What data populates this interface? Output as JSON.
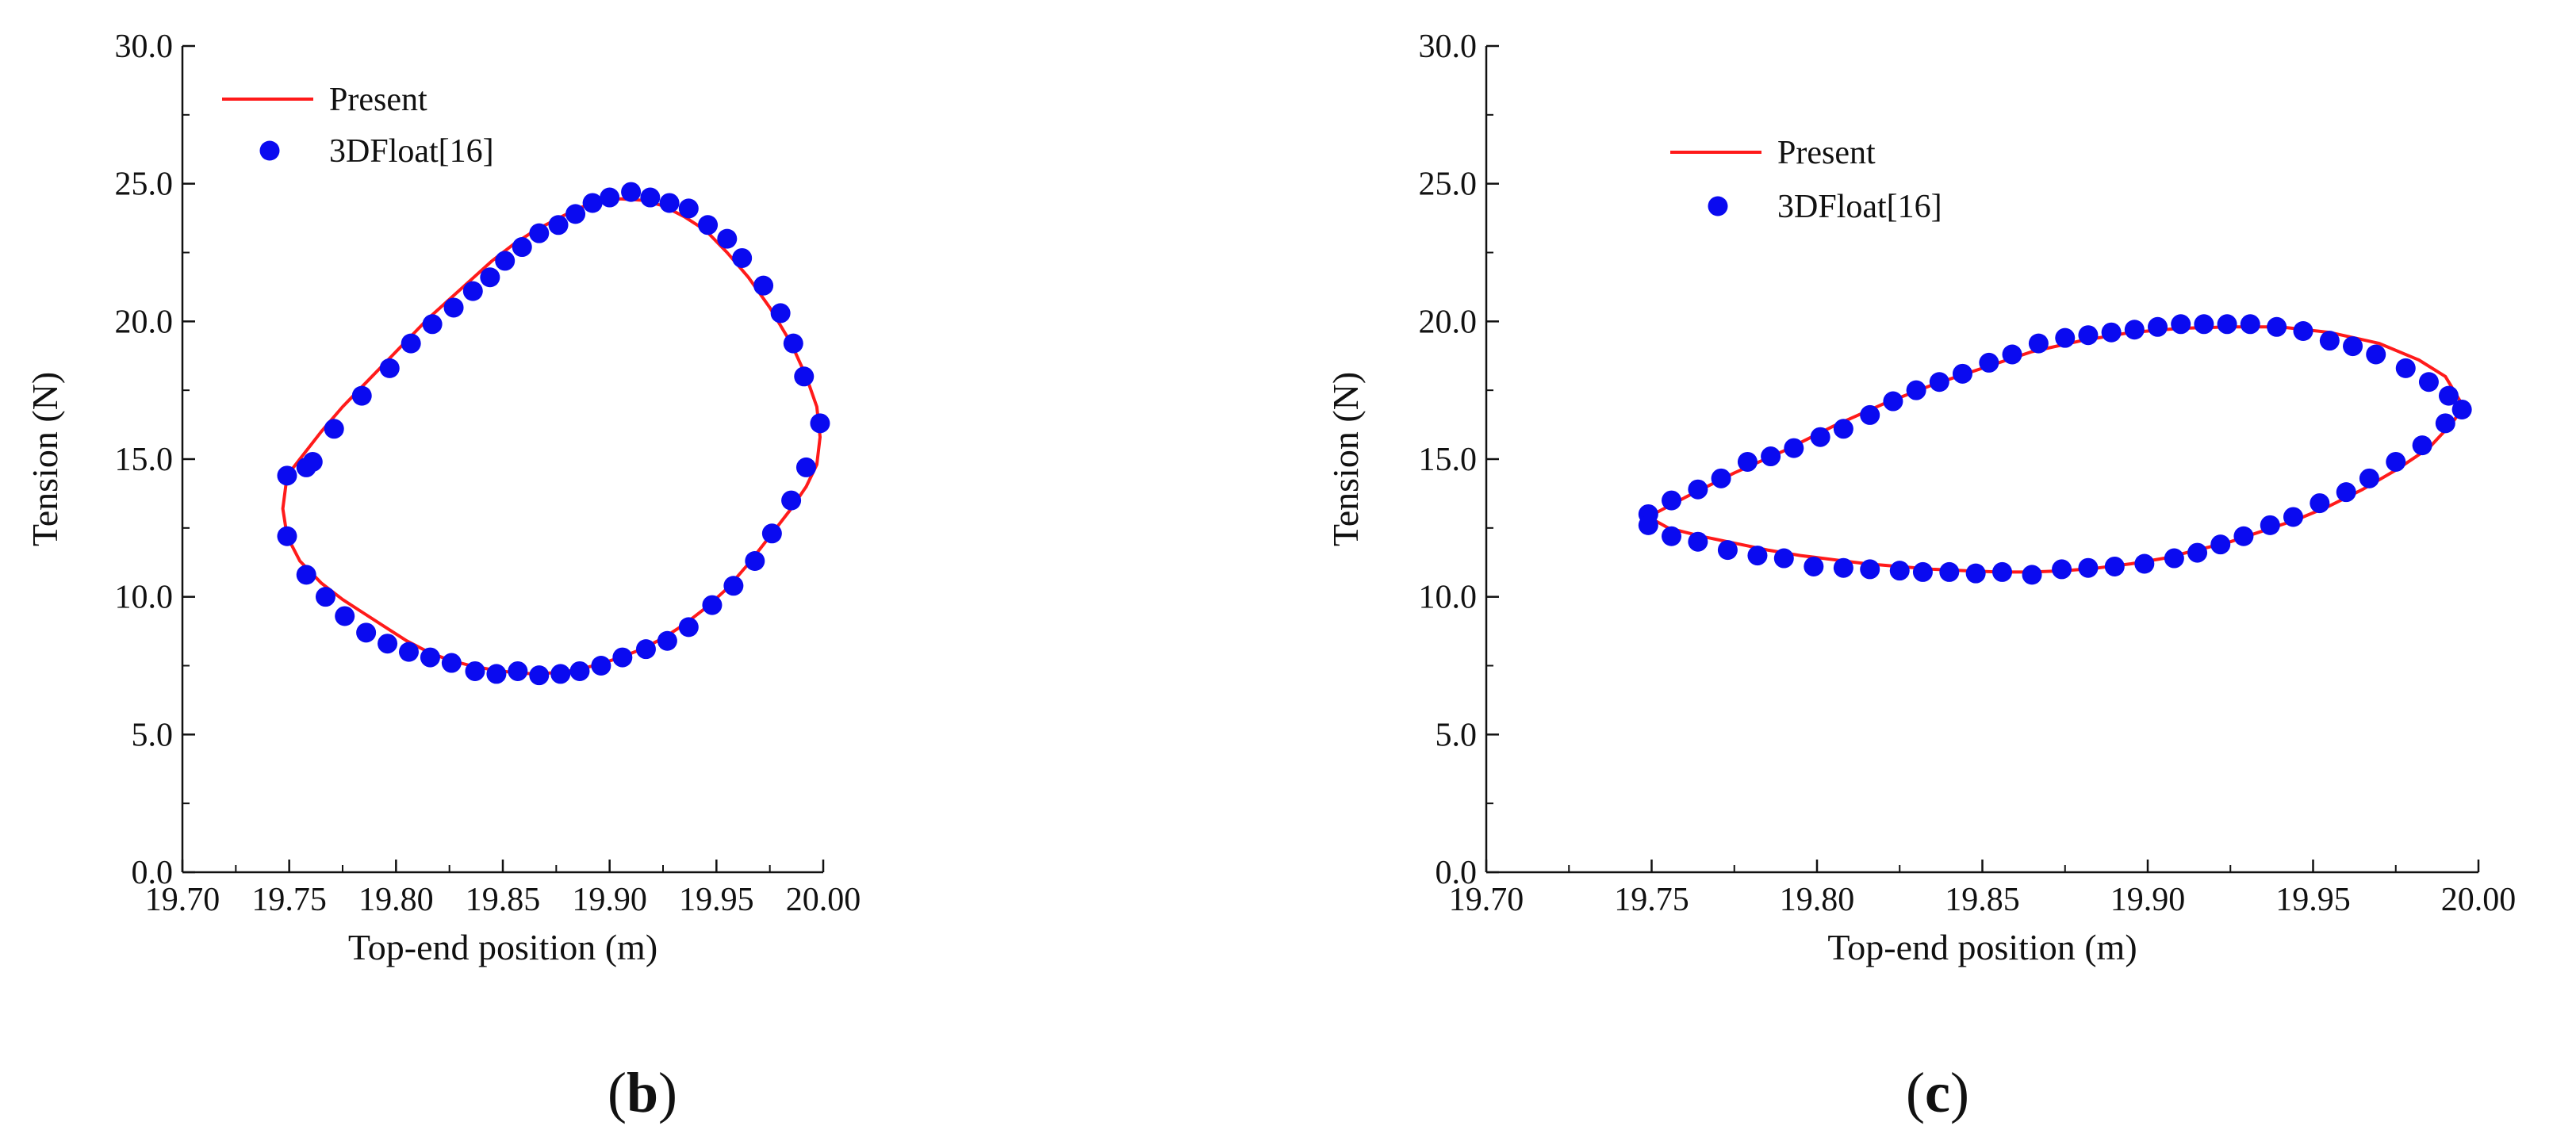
{
  "colors": {
    "line": "#ff1a1a",
    "points": "#0a0af0",
    "axis": "#111111"
  },
  "chart_data": [
    {
      "type": "scatter",
      "panel_label": {
        "open": "(",
        "letter": "b",
        "close": ")"
      },
      "xlabel": "Top-end position (m)",
      "ylabel": "Tension (N)",
      "xlim": [
        19.7,
        20.0
      ],
      "ylim": [
        0.0,
        30.0
      ],
      "xticks": [
        "19.70",
        "19.75",
        "19.80",
        "19.85",
        "19.90",
        "19.95",
        "20.00"
      ],
      "yticks": [
        "0.0",
        "5.0",
        "10.0",
        "15.0",
        "20.0",
        "25.0",
        "30.0"
      ],
      "legend": {
        "position": "top-left",
        "entries": [
          "Present",
          "3DFloat[16]"
        ]
      },
      "series": [
        {
          "name": "Present",
          "kind": "line",
          "x": [
            19.749,
            19.755,
            19.765,
            19.775,
            19.785,
            19.795,
            19.805,
            19.815,
            19.825,
            19.835,
            19.845,
            19.855,
            19.865,
            19.875,
            19.885,
            19.895,
            19.905,
            19.915,
            19.925,
            19.935,
            19.945,
            19.955,
            19.965,
            19.975,
            19.985,
            19.992,
            19.997,
            19.9985,
            19.997,
            19.992,
            19.985,
            19.975,
            19.965,
            19.955,
            19.945,
            19.935,
            19.925,
            19.915,
            19.905,
            19.895,
            19.885,
            19.875,
            19.865,
            19.855,
            19.845,
            19.835,
            19.825,
            19.815,
            19.805,
            19.795,
            19.785,
            19.775,
            19.765,
            19.755,
            19.749,
            19.747,
            19.749
          ],
          "y": [
            14.4,
            15.0,
            16.0,
            16.9,
            17.7,
            18.5,
            19.3,
            20.1,
            20.8,
            21.5,
            22.2,
            22.8,
            23.3,
            23.7,
            24.1,
            24.35,
            24.45,
            24.4,
            24.2,
            23.8,
            23.3,
            22.5,
            21.6,
            20.5,
            19.2,
            18.0,
            16.9,
            15.8,
            14.8,
            14.0,
            13.2,
            12.2,
            11.2,
            10.3,
            9.6,
            9.0,
            8.5,
            8.1,
            7.8,
            7.55,
            7.35,
            7.25,
            7.2,
            7.25,
            7.35,
            7.5,
            7.7,
            8.0,
            8.4,
            8.9,
            9.4,
            9.9,
            10.5,
            11.3,
            12.2,
            13.2,
            14.4
          ]
        },
        {
          "name": "3DFloat[16]",
          "kind": "points",
          "x": [
            19.749,
            19.758,
            19.761,
            19.771,
            19.784,
            19.797,
            19.807,
            19.817,
            19.827,
            19.836,
            19.844,
            19.851,
            19.859,
            19.867,
            19.876,
            19.884,
            19.892,
            19.9,
            19.91,
            19.919,
            19.928,
            19.937,
            19.946,
            19.955,
            19.962,
            19.972,
            19.98,
            19.986,
            19.991,
            19.9985,
            19.992,
            19.985,
            19.976,
            19.968,
            19.958,
            19.948,
            19.937,
            19.927,
            19.917,
            19.906,
            19.896,
            19.886,
            19.877,
            19.867,
            19.857,
            19.847,
            19.837,
            19.826,
            19.816,
            19.806,
            19.796,
            19.786,
            19.776,
            19.767,
            19.758,
            19.749
          ],
          "y": [
            14.4,
            14.7,
            14.9,
            16.1,
            17.3,
            18.3,
            19.2,
            19.9,
            20.5,
            21.1,
            21.6,
            22.2,
            22.7,
            23.2,
            23.5,
            23.9,
            24.3,
            24.5,
            24.7,
            24.5,
            24.3,
            24.1,
            23.5,
            23.0,
            22.3,
            21.3,
            20.3,
            19.2,
            18.0,
            16.3,
            14.7,
            13.5,
            12.3,
            11.3,
            10.4,
            9.7,
            8.9,
            8.4,
            8.1,
            7.8,
            7.5,
            7.3,
            7.2,
            7.15,
            7.3,
            7.2,
            7.3,
            7.6,
            7.8,
            8.0,
            8.3,
            8.7,
            9.3,
            10.0,
            10.8,
            12.2
          ]
        }
      ]
    },
    {
      "type": "scatter",
      "panel_label": {
        "open": "(",
        "letter": "c",
        "close": ")"
      },
      "xlabel": "Top-end position (m)",
      "ylabel": "Tension (N)",
      "xlim": [
        19.7,
        20.0
      ],
      "ylim": [
        0.0,
        30.0
      ],
      "xticks": [
        "19.70",
        "19.75",
        "19.80",
        "19.85",
        "19.90",
        "19.95",
        "20.00"
      ],
      "yticks": [
        "0.0",
        "5.0",
        "10.0",
        "15.0",
        "20.0",
        "25.0",
        "30.0"
      ],
      "legend": {
        "position": "top-left",
        "entries": [
          "Present",
          "3DFloat[16]"
        ]
      },
      "series": [
        {
          "name": "Present",
          "kind": "line",
          "x": [
            19.749,
            19.76,
            19.775,
            19.79,
            19.805,
            19.82,
            19.835,
            19.85,
            19.865,
            19.88,
            19.895,
            19.91,
            19.925,
            19.94,
            19.955,
            19.97,
            19.982,
            19.99,
            19.9955,
            19.992,
            19.985,
            19.975,
            19.965,
            19.955,
            19.945,
            19.935,
            19.925,
            19.915,
            19.905,
            19.895,
            19.885,
            19.875,
            19.865,
            19.855,
            19.845,
            19.835,
            19.825,
            19.815,
            19.805,
            19.795,
            19.785,
            19.775,
            19.765,
            19.755,
            19.749
          ],
          "y": [
            12.9,
            13.6,
            14.5,
            15.3,
            16.2,
            17.0,
            17.7,
            18.3,
            18.9,
            19.3,
            19.6,
            19.75,
            19.8,
            19.8,
            19.6,
            19.2,
            18.6,
            18.0,
            16.9,
            16.3,
            15.4,
            14.6,
            13.9,
            13.3,
            12.8,
            12.4,
            12.0,
            11.7,
            11.4,
            11.2,
            11.05,
            10.95,
            10.9,
            10.9,
            10.95,
            11.0,
            11.1,
            11.2,
            11.35,
            11.5,
            11.7,
            11.95,
            12.2,
            12.5,
            12.9
          ]
        },
        {
          "name": "3DFloat[16]",
          "kind": "points",
          "x": [
            19.749,
            19.756,
            19.764,
            19.771,
            19.779,
            19.786,
            19.793,
            19.801,
            19.808,
            19.816,
            19.823,
            19.83,
            19.837,
            19.844,
            19.852,
            19.859,
            19.867,
            19.875,
            19.882,
            19.889,
            19.896,
            19.903,
            19.91,
            19.917,
            19.924,
            19.931,
            19.939,
            19.947,
            19.955,
            19.962,
            19.969,
            19.978,
            19.985,
            19.991,
            19.995,
            19.99,
            19.983,
            19.975,
            19.967,
            19.96,
            19.952,
            19.944,
            19.937,
            19.929,
            19.922,
            19.915,
            19.908,
            19.899,
            19.89,
            19.882,
            19.874,
            19.865,
            19.856,
            19.848,
            19.84,
            19.832,
            19.825,
            19.816,
            19.808,
            19.799,
            19.79,
            19.782,
            19.773,
            19.764,
            19.756,
            19.749
          ],
          "y": [
            13.0,
            13.5,
            13.9,
            14.3,
            14.9,
            15.1,
            15.4,
            15.8,
            16.1,
            16.6,
            17.1,
            17.5,
            17.8,
            18.1,
            18.5,
            18.8,
            19.2,
            19.4,
            19.5,
            19.6,
            19.7,
            19.8,
            19.9,
            19.9,
            19.9,
            19.9,
            19.8,
            19.65,
            19.3,
            19.1,
            18.8,
            18.3,
            17.8,
            17.3,
            16.8,
            16.3,
            15.5,
            14.9,
            14.3,
            13.8,
            13.4,
            12.9,
            12.6,
            12.2,
            11.9,
            11.6,
            11.4,
            11.2,
            11.1,
            11.05,
            11.0,
            10.8,
            10.9,
            10.85,
            10.9,
            10.9,
            10.95,
            11.0,
            11.05,
            11.1,
            11.4,
            11.5,
            11.7,
            12.0,
            12.2,
            12.6
          ]
        }
      ]
    }
  ]
}
